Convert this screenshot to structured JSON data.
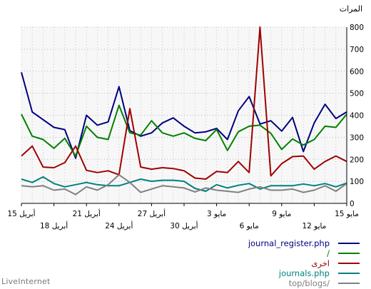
{
  "chart_data": {
    "type": "line",
    "ylabel": "المرات",
    "ylim": [
      0,
      800
    ],
    "yticks": [
      0,
      100,
      200,
      300,
      400,
      500,
      600,
      700,
      800
    ],
    "x_tick_labels_top": [
      "15 مايو",
      "9 مايو",
      "3 مايو",
      "27 أبريل",
      "21 أبريل",
      "15 أبريل"
    ],
    "x_tick_labels_bottom": [
      "12 مايو",
      "6 مايو",
      "30 أبريل",
      "24 أبريل",
      "18 أبريل"
    ],
    "x_top_at": [
      0,
      6,
      12,
      18,
      24,
      30
    ],
    "x_bottom_at": [
      3,
      9,
      15,
      21,
      27
    ],
    "x_count": 31,
    "grid": true,
    "legend_position": "bottom-right",
    "series": [
      {
        "name": "journal_register.php",
        "color": "#000080",
        "values": [
          415,
          385,
          450,
          365,
          235,
          390,
          328,
          375,
          360,
          485,
          420,
          290,
          340,
          325,
          320,
          350,
          388,
          365,
          320,
          305,
          330,
          530,
          370,
          355,
          400,
          205,
          335,
          345,
          380,
          415,
          595
        ]
      },
      {
        "name": "/",
        "color": "#008000",
        "values": [
          405,
          345,
          350,
          290,
          265,
          292,
          245,
          318,
          355,
          350,
          325,
          240,
          335,
          285,
          295,
          320,
          305,
          320,
          375,
          310,
          320,
          445,
          290,
          300,
          350,
          215,
          295,
          250,
          290,
          305,
          405
        ]
      },
      {
        "name": "اخرى",
        "color": "#a00000",
        "values": [
          190,
          215,
          190,
          155,
          215,
          212,
          180,
          125,
          800,
          140,
          190,
          140,
          145,
          110,
          115,
          148,
          158,
          162,
          155,
          165,
          430,
          130,
          148,
          140,
          150,
          260,
          185,
          162,
          165,
          260,
          215
        ]
      },
      {
        "name": "journals.php",
        "color": "#008080",
        "values": [
          92,
          75,
          90,
          80,
          88,
          80,
          80,
          80,
          65,
          90,
          82,
          70,
          85,
          55,
          68,
          100,
          105,
          105,
          100,
          110,
          95,
          80,
          80,
          85,
          95,
          85,
          75,
          90,
          120,
          95,
          110
        ]
      },
      {
        "name": "top/blogs/",
        "color": "#808080",
        "values": [
          90,
          55,
          80,
          60,
          50,
          65,
          60,
          60,
          75,
          65,
          50,
          55,
          60,
          70,
          52,
          70,
          75,
          80,
          65,
          50,
          95,
          130,
          85,
          60,
          75,
          40,
          65,
          60,
          80,
          75,
          80
        ]
      }
    ]
  },
  "brand": "LiveInternet"
}
